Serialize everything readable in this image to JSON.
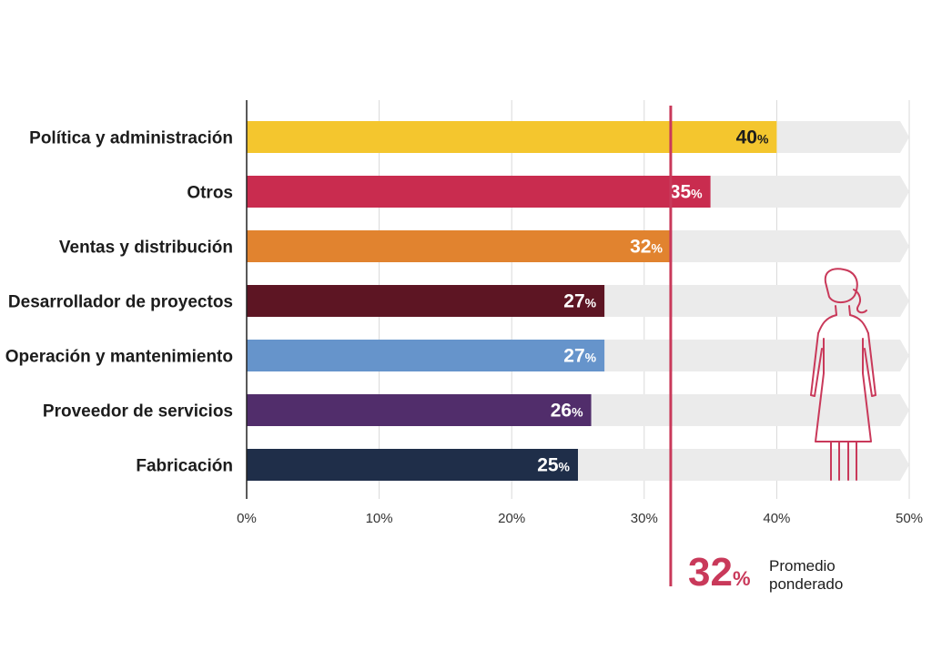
{
  "chart_data": {
    "type": "bar",
    "orientation": "horizontal",
    "categories": [
      "Política y administración",
      "Otros",
      "Ventas y distribución",
      "Desarrollador de proyectos",
      "Operación y mantenimiento",
      "Proveedor de servicios",
      "Fabricación"
    ],
    "values": [
      40,
      35,
      32,
      27,
      27,
      26,
      25
    ],
    "colors": [
      "#f4c62e",
      "#c92c4f",
      "#e1832f",
      "#5d1523",
      "#6694cb",
      "#512d6b",
      "#1f2e49"
    ],
    "label_colors": [
      "#1c1c1c",
      "#ffffff",
      "#ffffff",
      "#ffffff",
      "#ffffff",
      "#ffffff",
      "#ffffff"
    ],
    "value_suffix": "%",
    "xlim": [
      0,
      50
    ],
    "xticks": [
      0,
      10,
      20,
      30,
      40,
      50
    ],
    "xtick_labels": [
      "0%",
      "10%",
      "20%",
      "30%",
      "40%",
      "50%"
    ],
    "background_track_color": "#ebebeb",
    "grid": true,
    "reference_line": {
      "value": 32,
      "display_value": "32",
      "suffix": "%",
      "label_line1": "Promedio",
      "label_line2": "ponderado",
      "color": "#c9395a"
    },
    "decoration": "woman-figure-icon"
  }
}
